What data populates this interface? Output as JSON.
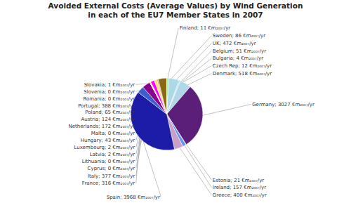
{
  "chart_data": {
    "type": "pie",
    "title": "Avoided External Costs (Average Values) by Wind Generation\nin each of the EU7 Member States in 2007",
    "values": [
      11,
      86,
      472,
      51,
      4,
      12,
      518,
      3027,
      21,
      157,
      400,
      3968,
      316,
      377,
      0.5,
      0.5,
      2,
      2,
      43,
      0.5,
      172,
      124,
      65,
      388,
      0.5,
      0.5,
      1
    ],
    "value_labels": [
      "Finland; 11 €m₂₀₀₇/yr",
      "Sweden; 86 €m₂₀₀₇/yr",
      "UK; 472 €m₂₀₀₇/yr",
      "Belgium; 51 €m₂₀₀₇/yr",
      "Bulgaria; 4 €m₂₀₀₇/yr",
      "Czech Rep; 12 €m₂₀₀₇/yr",
      "Denmark; 518 €m₂₀₀₇/yr",
      "Germany; 3027 €m₂₀₀₇/yr",
      "Estonia; 21 €m₂₀₀₇/yr",
      "Ireland; 157 €m₂₀₀₇/yr",
      "Greece; 400 €m₂₀₀₇/yr",
      "Spain; 3968 €m₂₀₀₇/yr",
      "France; 316 €m₂₀₀₇/yr",
      "Italy; 377 €m₂₀₀₇/yr",
      "Cyprus; 0 €m₂₀₀₇/yr",
      "Lithuania; 0 €m₂₀₀₇/yr",
      "Latvia; 2 €m₂₀₀₇/yr",
      "Luxembourg; 2 €m₂₀₀₇/yr",
      "Hungary; 43 €m₂₀₀₇/yr",
      "Malta; 0 €m₂₀₀₇/yr",
      "Netherlands; 172 €m₂₀₀₇/yr",
      "Austria; 124 €m₂₀₀₇/yr",
      "Poland; 65 €m₂₀₀₇/yr",
      "Portugal; 388 €m₂₀₀₇/yr",
      "Romania; 0 €m₂₀₀₇/yr",
      "Slovenia; 0 €m₂₀₀₇/yr",
      "Slovakia; 1 €m₂₀₀₇/yr"
    ],
    "colors": [
      "#7DC67D",
      "#90EE90",
      "#ADD8E6",
      "#87CEEB",
      "#6DB36D",
      "#228B22",
      "#B0D8E8",
      "#5B1F7A",
      "#4682B4",
      "#6495ED",
      "#C8A0C8",
      "#1C1CA8",
      "#3B5FCD",
      "#8B008B",
      "#E8E8E8",
      "#D8D8D8",
      "#B0C4DE",
      "#FFFACD",
      "#FFD700",
      "#FFFFF0",
      "#FF00FF",
      "#FFE066",
      "#D2B48C",
      "#8B6914",
      "#FFA07A",
      "#E6E6FA",
      "#A9A9A9"
    ]
  }
}
